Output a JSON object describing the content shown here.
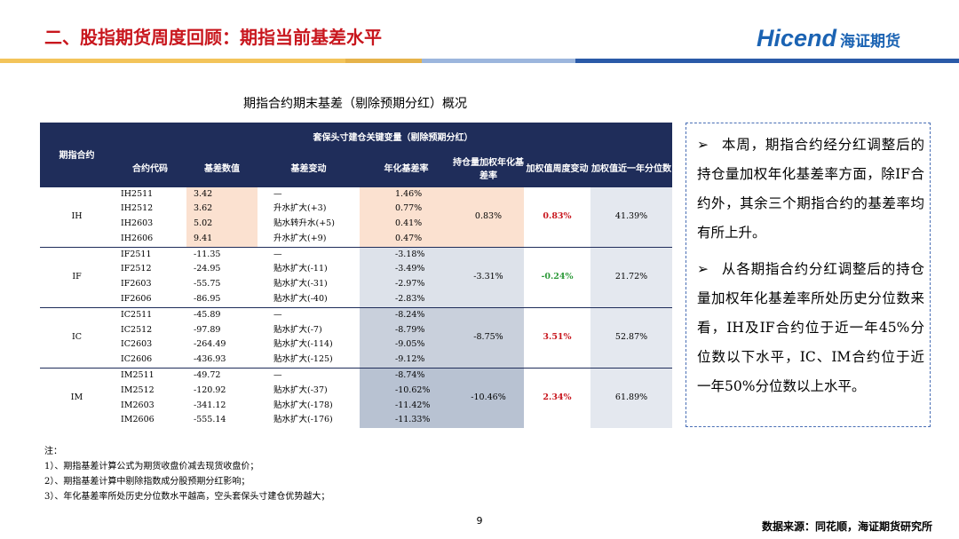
{
  "header": {
    "title": "二、股指期货周度回顾：期指当前基差水平",
    "logo_en": "Hicend",
    "logo_cn": "海证期货"
  },
  "table": {
    "title": "期指合约期末基差（剔除预期分红）概况",
    "group_header": "期指合约",
    "span_header": "套保头寸建仓关键变量（剔除预期分红）",
    "columns": [
      "合约代码",
      "基差数值",
      "基差变动",
      "年化基差率",
      "持仓量加权年化基差率",
      "加权值周度变动",
      "加权值近一年分位数"
    ],
    "groups": [
      {
        "name": "IH",
        "rows": [
          [
            "IH2511",
            "3.42",
            "—",
            "1.46%"
          ],
          [
            "IH2512",
            "3.62",
            "升水扩大(+3)",
            "0.77%"
          ],
          [
            "IH2603",
            "5.02",
            "贴水转升水(+5)",
            "0.41%"
          ],
          [
            "IH2606",
            "9.41",
            "升水扩大(+9)",
            "0.47%"
          ]
        ],
        "weighted": "0.83%",
        "weekly": "0.83%",
        "percentile": "41.39%"
      },
      {
        "name": "IF",
        "rows": [
          [
            "IF2511",
            "-11.35",
            "—",
            "-3.18%"
          ],
          [
            "IF2512",
            "-24.95",
            "贴水扩大(-11)",
            "-3.49%"
          ],
          [
            "IF2603",
            "-55.75",
            "贴水扩大(-31)",
            "-2.97%"
          ],
          [
            "IF2606",
            "-86.95",
            "贴水扩大(-40)",
            "-2.83%"
          ]
        ],
        "weighted": "-3.31%",
        "weekly": "-0.24%",
        "percentile": "21.72%"
      },
      {
        "name": "IC",
        "rows": [
          [
            "IC2511",
            "-45.89",
            "—",
            "-8.24%"
          ],
          [
            "IC2512",
            "-97.89",
            "贴水扩大(-7)",
            "-8.79%"
          ],
          [
            "IC2603",
            "-264.49",
            "贴水扩大(-114)",
            "-9.05%"
          ],
          [
            "IC2606",
            "-436.93",
            "贴水扩大(-125)",
            "-9.12%"
          ]
        ],
        "weighted": "-8.75%",
        "weekly": "3.51%",
        "percentile": "52.87%"
      },
      {
        "name": "IM",
        "rows": [
          [
            "IM2511",
            "-49.72",
            "—",
            "-8.74%"
          ],
          [
            "IM2512",
            "-120.92",
            "贴水扩大(-37)",
            "-10.62%"
          ],
          [
            "IM2603",
            "-341.12",
            "贴水扩大(-178)",
            "-11.42%"
          ],
          [
            "IM2606",
            "-555.14",
            "贴水扩大(-176)",
            "-11.33%"
          ]
        ],
        "weighted": "-10.46%",
        "weekly": "2.34%",
        "percentile": "61.89%"
      }
    ]
  },
  "commentary": [
    "本周，期指合约经分红调整后的持仓量加权年化基差率方面，除IF合约外，其余三个期指合约的基差率均有所上升。",
    "从各期指合约分红调整后的持仓量加权年化基差率所处历史分位数来看，IH及IF合约位于近一年45%分位数以下水平，IC、IM合约位于近一年50%分位数以上水平。"
  ],
  "notes": [
    "注：",
    "1）、期指基差计算公式为期货收盘价减去现货收盘价；",
    "2）、期指基差计算中剔除指数成分股预期分红影响；",
    "3）、年化基差率所处历史分位数水平越高，空头套保头寸建仓优势越大；"
  ],
  "footer": {
    "page": "9",
    "source": "数据来源：同花顺，海证期货研究所"
  }
}
